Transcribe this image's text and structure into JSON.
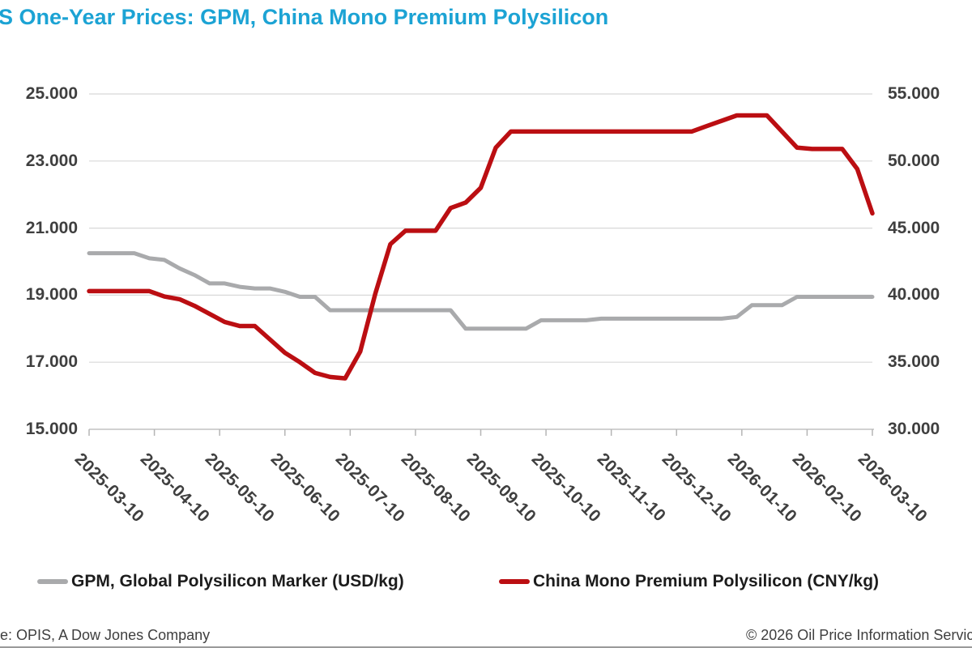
{
  "title": "S One-Year Prices: GPM, China Mono Premium Polysilicon",
  "colors": {
    "title": "#1CA3D4",
    "grid": "#D8D8D8",
    "axis_line": "#C2C2C2",
    "tick_mark": "#B5B5B5"
  },
  "legend": [
    {
      "label": "GPM, Global Polysilicon Marker (USD/kg)",
      "color": "#A9AAAC"
    },
    {
      "label": "China Mono Premium Polysilicon (CNY/kg)",
      "color": "#BB0E12"
    }
  ],
  "footer": {
    "source": "e: OPIS, A Dow Jones Company",
    "copyright": "© 2026 Oil Price Information Servic"
  },
  "chart_data": {
    "type": "line",
    "title": "S One-Year Prices: GPM, China Mono Premium Polysilicon",
    "grid": true,
    "legend_position": "bottom",
    "x_tick_labels": [
      "2025-03-10",
      "2025-04-10",
      "2025-05-10",
      "2025-06-10",
      "2025-07-10",
      "2025-08-10",
      "2025-09-10",
      "2025-10-10",
      "2025-11-10",
      "2025-12-10",
      "2026-01-10",
      "2026-02-10",
      "2026-03-10"
    ],
    "left_axis": {
      "min": 15,
      "max": 25,
      "tick_values": [
        25,
        23,
        21,
        19,
        17,
        15
      ],
      "tick_labels": [
        "25.000",
        "23.000",
        "21.000",
        "19.000",
        "17.000",
        "15.000"
      ],
      "unit": "USD/kg"
    },
    "right_axis": {
      "min": 30,
      "max": 55,
      "tick_values": [
        55,
        50,
        45,
        40,
        35,
        30
      ],
      "tick_labels": [
        "55.000",
        "50.000",
        "45.000",
        "40.000",
        "35.000",
        "30.000"
      ],
      "unit": "CNY/kg"
    },
    "x": [
      "2025-03-10",
      "2025-03-17",
      "2025-03-24",
      "2025-03-31",
      "2025-04-07",
      "2025-04-14",
      "2025-04-21",
      "2025-04-28",
      "2025-05-05",
      "2025-05-12",
      "2025-05-19",
      "2025-05-26",
      "2025-06-02",
      "2025-06-09",
      "2025-06-16",
      "2025-06-23",
      "2025-06-30",
      "2025-07-07",
      "2025-07-14",
      "2025-07-21",
      "2025-07-28",
      "2025-08-04",
      "2025-08-11",
      "2025-08-18",
      "2025-08-25",
      "2025-09-01",
      "2025-09-08",
      "2025-09-15",
      "2025-09-22",
      "2025-09-29",
      "2025-10-06",
      "2025-10-13",
      "2025-10-20",
      "2025-10-27",
      "2025-11-03",
      "2025-11-10",
      "2025-11-17",
      "2025-11-24",
      "2025-12-01",
      "2025-12-08",
      "2025-12-15",
      "2025-12-22",
      "2025-12-29",
      "2026-01-05",
      "2026-01-12",
      "2026-01-19",
      "2026-01-26",
      "2026-02-02",
      "2026-02-09",
      "2026-02-16",
      "2026-02-23",
      "2026-03-02",
      "2026-03-09"
    ],
    "series": [
      {
        "name": "GPM, Global Polysilicon Marker (USD/kg)",
        "axis": "left",
        "color": "#A9AAAC",
        "values": [
          20.25,
          20.25,
          20.25,
          20.25,
          20.1,
          20.05,
          19.8,
          19.6,
          19.35,
          19.35,
          19.25,
          19.2,
          19.2,
          19.1,
          18.95,
          18.95,
          18.55,
          18.55,
          18.55,
          18.55,
          18.55,
          18.55,
          18.55,
          18.55,
          18.55,
          18.0,
          18.0,
          18.0,
          18.0,
          18.0,
          18.25,
          18.25,
          18.25,
          18.25,
          18.3,
          18.3,
          18.3,
          18.3,
          18.3,
          18.3,
          18.3,
          18.3,
          18.3,
          18.35,
          18.7,
          18.7,
          18.7,
          18.95,
          18.95,
          18.95,
          18.95,
          18.95,
          18.95
        ]
      },
      {
        "name": "China Mono Premium Polysilicon (CNY/kg)",
        "axis": "right",
        "color": "#BB0E12",
        "values": [
          40.3,
          40.3,
          40.3,
          40.3,
          40.3,
          39.9,
          39.7,
          39.2,
          38.6,
          38.0,
          37.7,
          37.7,
          36.7,
          35.7,
          35.0,
          34.2,
          33.9,
          33.8,
          35.8,
          40.1,
          43.8,
          44.8,
          44.8,
          44.8,
          46.5,
          46.9,
          48.0,
          51.0,
          52.2,
          52.2,
          52.2,
          52.2,
          52.2,
          52.2,
          52.2,
          52.2,
          52.2,
          52.2,
          52.2,
          52.2,
          52.2,
          52.6,
          53.0,
          53.4,
          53.4,
          53.4,
          52.2,
          51.0,
          50.9,
          50.9,
          50.9,
          49.4,
          46.1
        ]
      }
    ]
  }
}
